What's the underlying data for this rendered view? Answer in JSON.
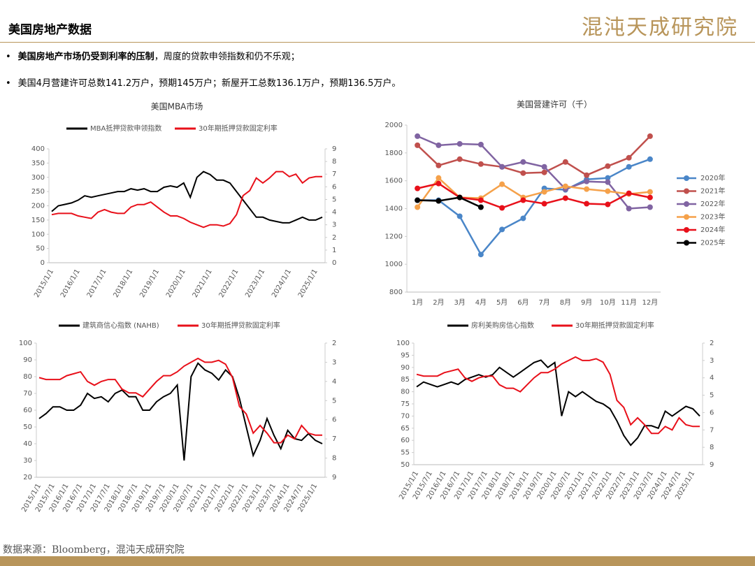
{
  "header": {
    "title": "美国房地产数据",
    "logo": "混沌天成研究院"
  },
  "bullets": [
    {
      "bold": "美国房地产市场仍受到利率的压制",
      "text": "，周度的贷款申领指数和仍不乐观；"
    },
    {
      "text": "美国4月营建许可总数141.2万户，预期145万户；新屋开工总数136.1万户，预期136.5万户。"
    }
  ],
  "source": "数据来源：Bloomberg，混沌天成研究院",
  "chart_data": [
    {
      "type": "line",
      "title": "美国MBA市场",
      "legend": "top",
      "categories": [
        "2015/1/1",
        null,
        null,
        null,
        "2016/1/1",
        null,
        null,
        null,
        "2017/1/1",
        null,
        null,
        null,
        "2018/1/1",
        null,
        null,
        null,
        "2019/1/1",
        null,
        null,
        null,
        "2020/1/1",
        null,
        null,
        null,
        "2021/1/1",
        null,
        null,
        null,
        "2022/1/1",
        null,
        null,
        null,
        "2023/1/1",
        null,
        null,
        null,
        "2024/1/1",
        null,
        null,
        null,
        "2025/1/1",
        null
      ],
      "series": [
        {
          "name": "MBA抵押贷款申领指数",
          "color": "#000000",
          "values": [
            180,
            200,
            205,
            210,
            220,
            235,
            230,
            235,
            240,
            245,
            250,
            250,
            260,
            255,
            260,
            250,
            250,
            265,
            270,
            265,
            280,
            230,
            300,
            320,
            310,
            290,
            290,
            280,
            250,
            220,
            190,
            160,
            160,
            150,
            145,
            140,
            140,
            150,
            160,
            150,
            150,
            160
          ]
        },
        {
          "name": "30年期抵押贷款固定利率",
          "color": "#e8101a",
          "axis": "y2",
          "values": [
            3.8,
            3.9,
            3.9,
            3.9,
            3.7,
            3.6,
            3.5,
            4.0,
            4.2,
            4.0,
            3.9,
            3.9,
            4.4,
            4.6,
            4.6,
            4.8,
            4.4,
            4.0,
            3.7,
            3.7,
            3.5,
            3.2,
            3.0,
            2.8,
            3.0,
            3.0,
            2.9,
            3.1,
            3.8,
            5.3,
            5.7,
            6.7,
            6.3,
            6.7,
            7.2,
            7.2,
            6.8,
            7.0,
            6.3,
            6.7,
            6.8,
            6.8
          ]
        }
      ],
      "ylim": [
        0,
        400
      ],
      "yticks": [
        0,
        50,
        100,
        150,
        200,
        250,
        300,
        350,
        400
      ],
      "y2lim": [
        0,
        9
      ],
      "y2ticks": [
        0,
        1,
        2,
        3,
        4,
        5,
        6,
        7,
        8,
        9
      ]
    },
    {
      "type": "line",
      "title": "美国营建许可（千）",
      "legend": "right",
      "markers": true,
      "categories": [
        "1月",
        "2月",
        "3月",
        "4月",
        "5月",
        "6月",
        "7月",
        "8月",
        "9月",
        "10月",
        "11月",
        "12月"
      ],
      "series": [
        {
          "name": "2020年",
          "color": "#4a86c8",
          "values": [
            1460,
            1460,
            1345,
            1070,
            1250,
            1330,
            1545,
            1535,
            1610,
            1620,
            1700,
            1755
          ]
        },
        {
          "name": "2021年",
          "color": "#c0504d",
          "values": [
            1855,
            1710,
            1755,
            1720,
            1700,
            1655,
            1660,
            1735,
            1640,
            1705,
            1765,
            1920
          ]
        },
        {
          "name": "2022年",
          "color": "#8064a2",
          "values": [
            1920,
            1855,
            1865,
            1860,
            1700,
            1735,
            1700,
            1540,
            1595,
            1590,
            1400,
            1410
          ]
        },
        {
          "name": "2023年",
          "color": "#f5a14a",
          "values": [
            1410,
            1620,
            1480,
            1475,
            1575,
            1480,
            1520,
            1560,
            1540,
            1525,
            1505,
            1520
          ]
        },
        {
          "name": "2024年",
          "color": "#e8101a",
          "values": [
            1545,
            1580,
            1480,
            1460,
            1405,
            1460,
            1435,
            1475,
            1435,
            1430,
            1510,
            1480
          ]
        },
        {
          "name": "2025年",
          "color": "#000000",
          "values": [
            1460,
            1455,
            1480,
            1410,
            null,
            null,
            null,
            null,
            null,
            null,
            null,
            null
          ]
        }
      ],
      "ylim": [
        800,
        2000
      ],
      "yticks": [
        800,
        1000,
        1200,
        1400,
        1600,
        1800,
        2000
      ]
    },
    {
      "type": "line",
      "legend": "top",
      "categories": [
        "2015/1/1",
        null,
        "2015/7/1",
        null,
        "2016/1/1",
        null,
        "2016/7/1",
        null,
        "2017/1/1",
        null,
        "2017/7/1",
        null,
        "2018/1/1",
        null,
        "2018/7/1",
        null,
        "2019/1/1",
        null,
        "2019/7/1",
        null,
        "2020/1/1",
        null,
        "2020/7/1",
        null,
        "2021/1/1",
        null,
        "2021/7/1",
        null,
        "2022/1/1",
        null,
        "2022/7/1",
        null,
        "2023/1/1",
        null,
        "2023/7/1",
        null,
        "2024/1/1",
        null,
        "2024/7/1",
        null,
        "2025/1/1",
        null
      ],
      "series": [
        {
          "name": "建筑商信心指数 (NAHB)",
          "color": "#000000",
          "values": [
            55,
            58,
            62,
            62,
            60,
            60,
            63,
            70,
            67,
            68,
            65,
            70,
            72,
            68,
            68,
            60,
            60,
            65,
            68,
            70,
            75,
            30,
            80,
            88,
            84,
            82,
            78,
            84,
            80,
            67,
            50,
            33,
            42,
            55,
            45,
            37,
            48,
            43,
            42,
            46,
            42,
            40
          ]
        },
        {
          "name": "30年期抵押贷款固定利率",
          "color": "#e8101a",
          "axis": "y2",
          "values": [
            3.8,
            3.9,
            3.9,
            3.9,
            3.7,
            3.6,
            3.5,
            4.0,
            4.2,
            4.0,
            3.9,
            3.9,
            4.4,
            4.6,
            4.6,
            4.8,
            4.4,
            4.0,
            3.7,
            3.7,
            3.5,
            3.2,
            3.0,
            2.8,
            3.0,
            3.0,
            2.9,
            3.1,
            3.8,
            5.3,
            5.7,
            6.7,
            6.3,
            6.7,
            7.2,
            7.2,
            6.8,
            7.0,
            6.3,
            6.7,
            6.8,
            6.8
          ]
        }
      ],
      "ylim": [
        20,
        100
      ],
      "yticks": [
        20,
        30,
        40,
        50,
        60,
        70,
        80,
        90,
        100
      ],
      "y2lim": [
        2,
        9
      ],
      "y2_inverted": true,
      "y2ticks": [
        2,
        3,
        4,
        5,
        6,
        7,
        8,
        9
      ]
    },
    {
      "type": "line",
      "legend": "top",
      "categories": [
        "2015/1/1",
        null,
        "2015/7/1",
        null,
        "2016/1/1",
        null,
        "2016/7/1",
        null,
        "2017/1/1",
        null,
        "2017/7/1",
        null,
        "2018/1/1",
        null,
        "2018/7/1",
        null,
        "2019/1/1",
        null,
        "2019/7/1",
        null,
        "2020/1/1",
        null,
        "2020/7/1",
        null,
        "2021/1/1",
        null,
        "2021/7/1",
        null,
        "2022/1/1",
        null,
        "2022/7/1",
        null,
        "2023/1/1",
        null,
        "2023/7/1",
        null,
        "2024/1/1",
        null,
        "2024/7/1",
        null,
        "2025/1/1",
        null
      ],
      "series": [
        {
          "name": "房利美购房信心指数",
          "color": "#000000",
          "values": [
            82,
            84,
            83,
            82,
            83,
            84,
            83,
            85,
            86,
            87,
            86,
            87,
            90,
            88,
            86,
            88,
            90,
            92,
            93,
            90,
            92,
            70,
            80,
            78,
            80,
            78,
            76,
            75,
            73,
            68,
            62,
            58,
            61,
            66,
            66,
            65,
            72,
            70,
            72,
            74,
            73,
            70
          ]
        },
        {
          "name": "30年期抵押贷款固定利率",
          "color": "#e8101a",
          "axis": "y2",
          "values": [
            3.8,
            3.9,
            3.9,
            3.9,
            3.7,
            3.6,
            3.5,
            4.0,
            4.2,
            4.0,
            3.9,
            3.9,
            4.4,
            4.6,
            4.6,
            4.8,
            4.4,
            4.0,
            3.7,
            3.7,
            3.5,
            3.2,
            3.0,
            2.8,
            3.0,
            3.0,
            2.9,
            3.1,
            3.8,
            5.3,
            5.7,
            6.7,
            6.3,
            6.7,
            7.2,
            7.2,
            6.8,
            7.0,
            6.3,
            6.7,
            6.8,
            6.8
          ]
        }
      ],
      "ylim": [
        50,
        100
      ],
      "yticks": [
        50,
        55,
        60,
        65,
        70,
        75,
        80,
        85,
        90,
        95,
        100
      ],
      "y2lim": [
        2,
        9
      ],
      "y2_inverted": true,
      "y2ticks": [
        2,
        3,
        4,
        5,
        6,
        7,
        8,
        9
      ]
    }
  ]
}
